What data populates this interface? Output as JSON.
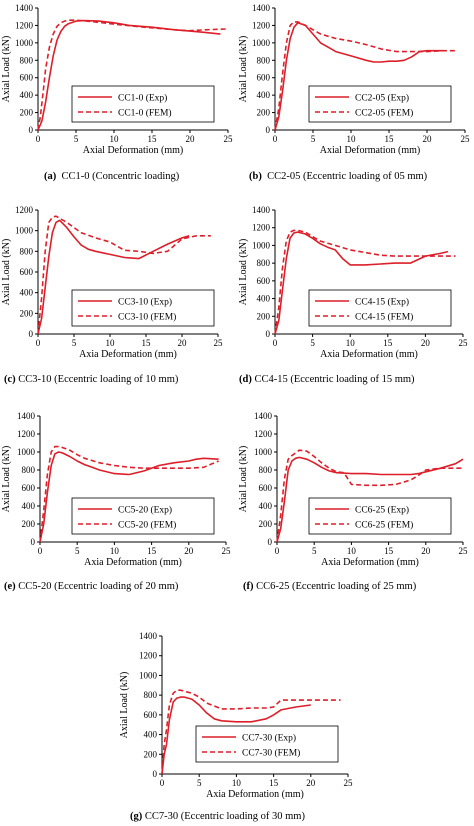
{
  "chart_data": [
    {
      "type": "line",
      "xlabel": "Axial Deformation (mm)",
      "ylabel": "Axial Load (kN)",
      "xlim": [
        0,
        25
      ],
      "ylim": [
        0,
        1400
      ],
      "xticks": [
        "0",
        "5",
        "10",
        "15",
        "20",
        "25"
      ],
      "yticks": [
        "0",
        "200",
        "400",
        "600",
        "800",
        "1000",
        "1200",
        "1400"
      ],
      "grid": false,
      "legend": "bottom-right",
      "caption_id": "(a)",
      "caption": "CC1-0 (Concentric loading)",
      "series": [
        {
          "name": "CC1-0 (Exp)",
          "style": "solid",
          "x": [
            0,
            0.5,
            1,
            1.5,
            2,
            2.5,
            3,
            3.5,
            4,
            5,
            6,
            8,
            10,
            12,
            15,
            18,
            20,
            22,
            24
          ],
          "y": [
            0,
            100,
            320,
            600,
            850,
            1030,
            1130,
            1190,
            1220,
            1250,
            1255,
            1250,
            1230,
            1200,
            1180,
            1150,
            1135,
            1120,
            1100
          ]
        },
        {
          "name": "CC1-0 (FEM)",
          "style": "dashed",
          "x": [
            0,
            0.3,
            0.7,
            1,
            1.5,
            2,
            2.5,
            3,
            3.5,
            4,
            5,
            7,
            10,
            14,
            18,
            20,
            22,
            25
          ],
          "y": [
            0,
            150,
            450,
            700,
            950,
            1100,
            1190,
            1230,
            1250,
            1260,
            1260,
            1245,
            1215,
            1180,
            1150,
            1140,
            1150,
            1160
          ]
        }
      ]
    },
    {
      "type": "line",
      "xlabel": "Axial Deformation (mm)",
      "ylabel": "Axial Load (kN)",
      "xlim": [
        0,
        25
      ],
      "ylim": [
        0,
        1400
      ],
      "xticks": [
        "0",
        "5",
        "10",
        "15",
        "20",
        "25"
      ],
      "yticks": [
        "0",
        "200",
        "400",
        "600",
        "800",
        "1000",
        "1200",
        "1400"
      ],
      "grid": false,
      "legend": "bottom-right",
      "caption_id": "(b)",
      "caption": "CC2-05 (Eccentric loading of 05 mm)",
      "series": [
        {
          "name": "CC2-05 (Exp)",
          "style": "solid",
          "x": [
            0,
            0.5,
            1,
            1.5,
            2,
            2.5,
            3,
            4,
            5,
            6,
            7,
            8,
            10,
            12,
            13,
            14,
            15,
            16,
            17,
            18,
            19,
            20,
            22
          ],
          "y": [
            0,
            150,
            450,
            800,
            1050,
            1180,
            1230,
            1200,
            1100,
            1000,
            950,
            900,
            850,
            800,
            780,
            780,
            790,
            790,
            800,
            840,
            900,
            910,
            910
          ]
        },
        {
          "name": "CC2-05 (FEM)",
          "style": "dashed",
          "x": [
            0,
            0.5,
            1,
            1.5,
            2,
            2.5,
            3,
            4,
            5,
            6,
            8,
            10,
            12,
            14,
            16,
            18,
            20,
            22,
            24
          ],
          "y": [
            0,
            250,
            650,
            1000,
            1200,
            1240,
            1240,
            1200,
            1150,
            1100,
            1050,
            1020,
            980,
            930,
            900,
            900,
            900,
            910,
            910
          ]
        }
      ]
    },
    {
      "type": "line",
      "xlabel": "Axia Deformation (mm)",
      "ylabel": "Axial Load (kN)",
      "xlim": [
        0,
        25
      ],
      "ylim": [
        0,
        1200
      ],
      "xticks": [
        "0",
        "5",
        "10",
        "15",
        "20",
        "25"
      ],
      "yticks": [
        "0",
        "200",
        "400",
        "600",
        "800",
        "1000",
        "1200"
      ],
      "grid": false,
      "legend": "bottom-right",
      "caption_id": "(c)",
      "caption": "CC3-10 (Eccentric loading of 10 mm)",
      "series": [
        {
          "name": "CC3-10 (Exp)",
          "style": "solid",
          "x": [
            0,
            0.5,
            1,
            1.5,
            2,
            2.5,
            3,
            4,
            5,
            6,
            7,
            8,
            10,
            12,
            14,
            16,
            18,
            20,
            21
          ],
          "y": [
            0,
            150,
            450,
            750,
            980,
            1080,
            1100,
            1030,
            940,
            860,
            820,
            800,
            770,
            740,
            730,
            800,
            870,
            930,
            950
          ]
        },
        {
          "name": "CC3-10 (FEM)",
          "style": "dashed",
          "x": [
            0,
            0.5,
            1,
            1.5,
            2,
            2.5,
            3,
            4,
            5,
            6,
            8,
            10,
            12,
            14,
            16,
            18,
            20,
            22,
            24
          ],
          "y": [
            0,
            350,
            800,
            1080,
            1130,
            1140,
            1120,
            1080,
            1030,
            980,
            930,
            890,
            810,
            800,
            780,
            800,
            920,
            950,
            950
          ]
        }
      ]
    },
    {
      "type": "line",
      "xlabel": "Axia Deformation (mm)",
      "ylabel": "Axial Load (kN)",
      "xlim": [
        0,
        25
      ],
      "ylim": [
        0,
        1400
      ],
      "xticks": [
        "0",
        "5",
        "10",
        "15",
        "20",
        "25"
      ],
      "yticks": [
        "0",
        "200",
        "400",
        "600",
        "800",
        "1000",
        "1200",
        "1400"
      ],
      "grid": false,
      "legend": "bottom-right",
      "caption_id": "(d)",
      "caption": "CC4-15 (Eccentric loading of 15 mm)",
      "series": [
        {
          "name": "CC4-15 (Exp)",
          "style": "solid",
          "x": [
            0,
            0.5,
            1,
            1.5,
            2,
            2.5,
            3,
            4,
            5,
            6,
            7,
            8,
            9,
            10,
            12,
            14,
            16,
            18,
            20,
            22,
            23
          ],
          "y": [
            0,
            150,
            500,
            850,
            1080,
            1140,
            1150,
            1130,
            1080,
            1020,
            980,
            950,
            850,
            780,
            780,
            790,
            800,
            800,
            880,
            910,
            930
          ]
        },
        {
          "name": "CC4-15 (FEM)",
          "style": "dashed",
          "x": [
            0,
            0.5,
            1,
            1.5,
            2,
            2.5,
            3,
            4,
            5,
            6,
            8,
            10,
            12,
            14,
            16,
            18,
            20,
            22,
            24
          ],
          "y": [
            0,
            300,
            750,
            1050,
            1150,
            1170,
            1170,
            1150,
            1100,
            1050,
            1000,
            950,
            920,
            890,
            880,
            880,
            880,
            880,
            880
          ]
        }
      ]
    },
    {
      "type": "line",
      "xlabel": "Axia Deformation (mm)",
      "ylabel": "Axial Load (kN)",
      "xlim": [
        0,
        25
      ],
      "ylim": [
        0,
        1400
      ],
      "xticks": [
        "0",
        "5",
        "10",
        "15",
        "20",
        "25"
      ],
      "yticks": [
        "0",
        "200",
        "400",
        "600",
        "800",
        "1000",
        "1200",
        "1400"
      ],
      "grid": false,
      "legend": "bottom-right",
      "caption_id": "(e)",
      "caption": "CC5-20 (Eccentric loading of 20 mm)",
      "series": [
        {
          "name": "CC5-20 (Exp)",
          "style": "solid",
          "x": [
            0,
            0.5,
            1,
            1.5,
            2,
            2.5,
            3,
            4,
            5,
            6,
            7,
            8,
            10,
            12,
            14,
            16,
            18,
            20,
            21,
            22,
            24
          ],
          "y": [
            0,
            200,
            550,
            850,
            980,
            1000,
            990,
            950,
            900,
            860,
            830,
            800,
            760,
            750,
            790,
            850,
            880,
            900,
            920,
            930,
            920
          ]
        },
        {
          "name": "CC5-20 (FEM)",
          "style": "dashed",
          "x": [
            0,
            0.5,
            1,
            1.5,
            2,
            2.5,
            3,
            4,
            5,
            6,
            8,
            10,
            12,
            14,
            16,
            18,
            20,
            22,
            24
          ],
          "y": [
            0,
            350,
            750,
            1000,
            1060,
            1060,
            1050,
            1020,
            970,
            930,
            880,
            850,
            830,
            820,
            820,
            820,
            820,
            830,
            900
          ]
        }
      ]
    },
    {
      "type": "line",
      "xlabel": "Axia Deformation (mm)",
      "ylabel": "Axial Load (kN)",
      "xlim": [
        0,
        25
      ],
      "ylim": [
        0,
        1400
      ],
      "xticks": [
        "0",
        "5",
        "10",
        "15",
        "20",
        "25"
      ],
      "yticks": [
        "0",
        "200",
        "400",
        "600",
        "800",
        "1000",
        "1200",
        "1400"
      ],
      "grid": false,
      "legend": "bottom-right",
      "caption_id": "(f)",
      "caption": "CC6-25 (Eccentric loading of 25 mm)",
      "series": [
        {
          "name": "CC6-25 (Exp)",
          "style": "solid",
          "x": [
            0,
            0.5,
            1,
            1.5,
            2,
            2.5,
            3,
            4,
            5,
            6,
            7,
            8,
            10,
            12,
            14,
            16,
            18,
            19,
            20,
            22,
            24,
            25
          ],
          "y": [
            0,
            150,
            450,
            800,
            900,
            930,
            940,
            920,
            880,
            830,
            790,
            770,
            760,
            760,
            750,
            750,
            750,
            760,
            780,
            820,
            870,
            920
          ]
        },
        {
          "name": "CC6-25 (FEM)",
          "style": "dashed",
          "x": [
            0,
            0.5,
            1,
            1.5,
            2,
            2.5,
            3,
            4,
            5,
            6,
            7,
            8,
            9,
            10,
            12,
            14,
            16,
            18,
            19,
            20,
            22,
            24,
            25
          ],
          "y": [
            0,
            300,
            700,
            920,
            960,
            990,
            1020,
            1010,
            950,
            880,
            820,
            780,
            770,
            640,
            630,
            630,
            640,
            690,
            740,
            800,
            820,
            820,
            820
          ]
        }
      ]
    },
    {
      "type": "line",
      "xlabel": "Axia Deformation (mm)",
      "ylabel": "Axial Load (kN)",
      "xlim": [
        0,
        25
      ],
      "ylim": [
        0,
        1400
      ],
      "xticks": [
        "0",
        "5",
        "10",
        "15",
        "20",
        "25"
      ],
      "yticks": [
        "0",
        "200",
        "400",
        "600",
        "800",
        "1000",
        "1200",
        "1400"
      ],
      "grid": false,
      "legend": "bottom-right",
      "caption_id": "(g)",
      "caption": "CC7-30 (Eccentric loading of 30 mm)",
      "series": [
        {
          "name": "CC7-30 (Exp)",
          "style": "solid",
          "x": [
            0,
            0.3,
            0.6,
            1,
            1.5,
            2,
            2.5,
            3,
            4,
            5,
            6,
            7,
            8,
            10,
            12,
            14,
            15,
            16,
            18,
            20
          ],
          "y": [
            0,
            200,
            300,
            550,
            730,
            770,
            780,
            780,
            760,
            700,
            620,
            560,
            540,
            530,
            530,
            560,
            600,
            650,
            680,
            700
          ]
        },
        {
          "name": "CC7-30 (FEM)",
          "style": "dashed",
          "x": [
            0,
            0.3,
            0.6,
            1,
            1.5,
            2,
            2.5,
            3,
            4,
            5,
            6,
            8,
            10,
            12,
            14,
            15,
            16,
            18,
            20,
            22,
            24
          ],
          "y": [
            0,
            300,
            450,
            700,
            820,
            850,
            850,
            840,
            820,
            780,
            720,
            660,
            660,
            670,
            670,
            680,
            750,
            750,
            750,
            750,
            750
          ]
        }
      ]
    }
  ],
  "colors": {
    "exp": "#dd1f2a",
    "fem": "#dd1f2a",
    "axis": "#000000"
  }
}
